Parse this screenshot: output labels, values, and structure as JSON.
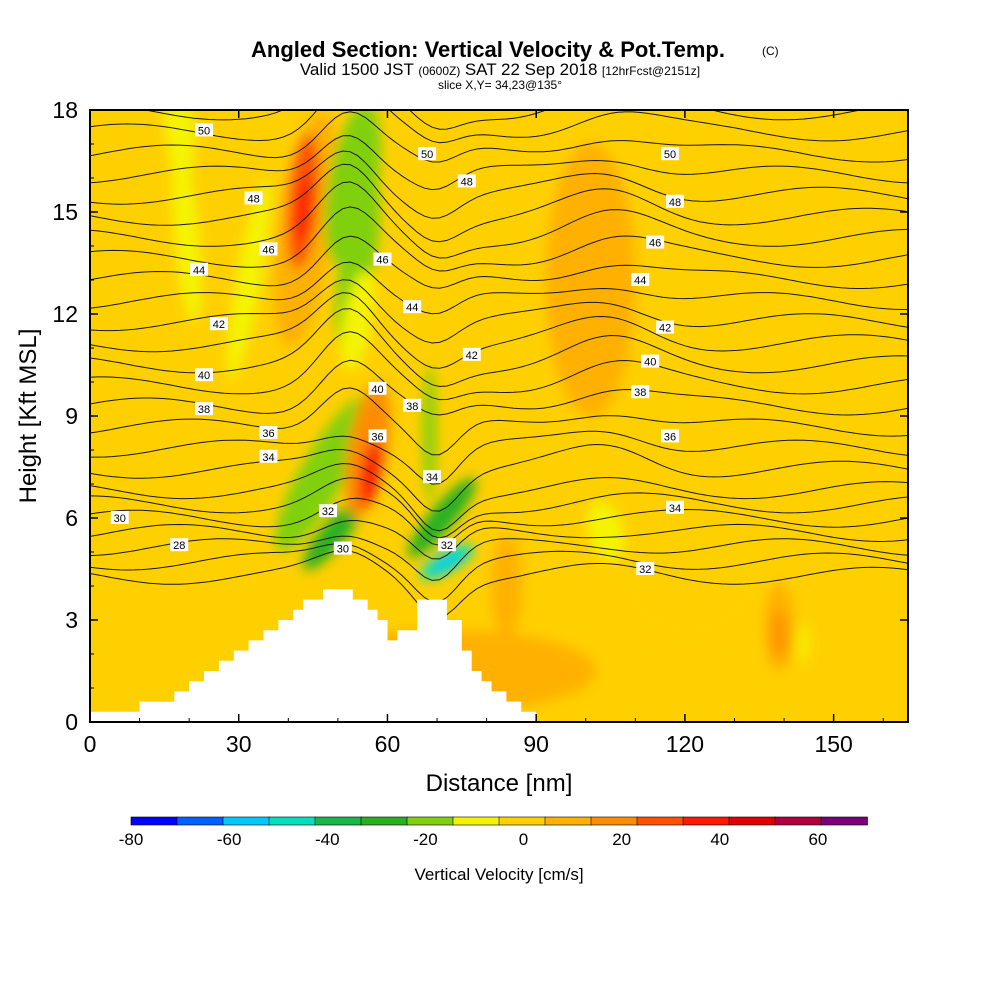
{
  "chart_data": {
    "type": "heatmap",
    "title": "Angled Section: Vertical Velocity & Pot.Temp.",
    "title_unit": "(C)",
    "subtitle_parts": [
      "Valid 1500 JST",
      "(0600Z)",
      "SAT 22 Sep 2018",
      "[12hrFcst@2151z]"
    ],
    "slice_label": "slice X,Y= 34,23@135°",
    "xlabel": "Distance [nm]",
    "ylabel": "Height [Kft MSL]",
    "xlim": [
      0,
      165
    ],
    "ylim": [
      0,
      18
    ],
    "x_ticks": [
      "0",
      "30",
      "60",
      "90",
      "120",
      "150"
    ],
    "y_ticks": [
      "0",
      "3",
      "6",
      "9",
      "12",
      "15",
      "18"
    ],
    "colorbar": {
      "label": "Vertical Velocity [cm/s]",
      "ticks": [
        "-80",
        "-60",
        "-40",
        "-20",
        "0",
        "20",
        "40",
        "60"
      ],
      "bounds": [
        -80,
        70
      ],
      "step": 10,
      "colors": [
        "#0000ff",
        "#0060ff",
        "#00c8ff",
        "#00e0c0",
        "#18b848",
        "#28b020",
        "#80d010",
        "#f4f400",
        "#ffd000",
        "#ffb000",
        "#ff8c00",
        "#ff5000",
        "#ff1800",
        "#e00000",
        "#b00040",
        "#7a007a"
      ]
    },
    "background_color": "#ffd000",
    "terrain": [
      [
        0,
        0.3
      ],
      [
        10,
        0.3
      ],
      [
        10,
        0.6
      ],
      [
        17,
        0.6
      ],
      [
        17,
        0.9
      ],
      [
        20,
        0.9
      ],
      [
        20,
        1.2
      ],
      [
        23,
        1.2
      ],
      [
        23,
        1.5
      ],
      [
        26,
        1.5
      ],
      [
        26,
        1.8
      ],
      [
        29,
        1.8
      ],
      [
        29,
        2.1
      ],
      [
        32,
        2.1
      ],
      [
        32,
        2.4
      ],
      [
        35,
        2.4
      ],
      [
        35,
        2.7
      ],
      [
        38,
        2.7
      ],
      [
        38,
        3.0
      ],
      [
        41,
        3.0
      ],
      [
        41,
        3.3
      ],
      [
        43,
        3.3
      ],
      [
        43,
        3.6
      ],
      [
        47,
        3.6
      ],
      [
        47,
        3.9
      ],
      [
        53,
        3.9
      ],
      [
        53,
        3.6
      ],
      [
        56,
        3.6
      ],
      [
        56,
        3.3
      ],
      [
        58,
        3.3
      ],
      [
        58,
        3.0
      ],
      [
        60,
        3.0
      ],
      [
        60,
        2.4
      ],
      [
        62,
        2.4
      ],
      [
        62,
        2.7
      ],
      [
        66,
        2.7
      ],
      [
        66,
        3.6
      ],
      [
        72,
        3.6
      ],
      [
        72,
        3.0
      ],
      [
        75,
        3.0
      ],
      [
        75,
        2.1
      ],
      [
        77,
        2.1
      ],
      [
        77,
        1.5
      ],
      [
        79,
        1.5
      ],
      [
        79,
        1.2
      ],
      [
        81,
        1.2
      ],
      [
        81,
        0.9
      ],
      [
        84,
        0.9
      ],
      [
        84,
        0.6
      ],
      [
        87,
        0.6
      ],
      [
        87,
        0.3
      ],
      [
        90,
        0.3
      ],
      [
        90,
        0
      ]
    ],
    "velocity_features": [
      {
        "x": 18,
        "y": 17.5,
        "rx": 3,
        "ry": 1.6,
        "rot": -5,
        "v": -10
      },
      {
        "x": 19.5,
        "y": 14.3,
        "rx": 2.5,
        "ry": 2.6,
        "rot": -5,
        "v": -10
      },
      {
        "x": 32,
        "y": 13,
        "rx": 2.5,
        "ry": 3,
        "rot": 10,
        "v": -10
      },
      {
        "x": 43.5,
        "y": 14.5,
        "rx": 5.5,
        "ry": 3.5,
        "rot": 8,
        "v": 10
      },
      {
        "x": 43,
        "y": 15.3,
        "rx": 3,
        "ry": 2,
        "rot": 5,
        "v": 30
      },
      {
        "x": 43,
        "y": 15.1,
        "rx": 1.3,
        "ry": 1,
        "rot": 5,
        "v": 40
      },
      {
        "x": 53,
        "y": 15.8,
        "rx": 5,
        "ry": 2.4,
        "rot": 10,
        "v": -20
      },
      {
        "x": 54,
        "y": 13.5,
        "rx": 3.5,
        "ry": 2.5,
        "rot": 10,
        "v": -20
      },
      {
        "x": 54,
        "y": 11.8,
        "rx": 3,
        "ry": 1.5,
        "rot": 10,
        "v": -10
      },
      {
        "x": 47,
        "y": 7.3,
        "rx": 4.5,
        "ry": 2.6,
        "rot": 30,
        "v": -20
      },
      {
        "x": 49,
        "y": 5.5,
        "rx": 2.5,
        "ry": 1.3,
        "rot": 40,
        "v": -30
      },
      {
        "x": 56,
        "y": 8,
        "rx": 4,
        "ry": 2,
        "rot": 10,
        "v": 20
      },
      {
        "x": 56.5,
        "y": 7.3,
        "rx": 2,
        "ry": 1,
        "rot": 10,
        "v": 40
      },
      {
        "x": 68.5,
        "y": 8.5,
        "rx": 1.3,
        "ry": 2,
        "rot": 0,
        "v": -20
      },
      {
        "x": 71,
        "y": 6,
        "rx": 2.5,
        "ry": 1.5,
        "rot": 40,
        "v": -30
      },
      {
        "x": 72,
        "y": 4.7,
        "rx": 2,
        "ry": 0.9,
        "rot": 60,
        "v": -50
      },
      {
        "x": 72,
        "y": 4.7,
        "rx": 1,
        "ry": 0.5,
        "rot": 60,
        "v": -60
      },
      {
        "x": 84,
        "y": 4,
        "rx": 3,
        "ry": 1.5,
        "rot": 0,
        "v": 10
      },
      {
        "x": 101,
        "y": 13,
        "rx": 9,
        "ry": 4,
        "rot": 0,
        "v": 10
      },
      {
        "x": 104,
        "y": 5.6,
        "rx": 3.5,
        "ry": 0.9,
        "rot": -15,
        "v": -10
      },
      {
        "x": 139,
        "y": 2.8,
        "rx": 3,
        "ry": 1.3,
        "rot": 0,
        "v": 10
      },
      {
        "x": 139,
        "y": 2.6,
        "rx": 1.3,
        "ry": 0.7,
        "rot": 0,
        "v": 20
      },
      {
        "x": 144,
        "y": 2.3,
        "rx": 1,
        "ry": 0.6,
        "rot": 0,
        "v": -10
      },
      {
        "x": 121,
        "y": 4,
        "rx": 14,
        "ry": 1.6,
        "rot": 0,
        "v": 0
      },
      {
        "x": 72,
        "y": 1.5,
        "rx": 30,
        "ry": 1.2,
        "rot": 0,
        "v": 10
      }
    ],
    "theta_contour_labels": [
      {
        "text": "50",
        "x": 23,
        "y": 17.4
      },
      {
        "text": "50",
        "x": 68,
        "y": 16.7
      },
      {
        "text": "50",
        "x": 117,
        "y": 16.7
      },
      {
        "text": "48",
        "x": 33,
        "y": 15.4
      },
      {
        "text": "48",
        "x": 76,
        "y": 15.9
      },
      {
        "text": "48",
        "x": 118,
        "y": 15.3
      },
      {
        "text": "46",
        "x": 36,
        "y": 13.9
      },
      {
        "text": "46",
        "x": 59,
        "y": 13.6
      },
      {
        "text": "46",
        "x": 114,
        "y": 14.1
      },
      {
        "text": "44",
        "x": 22,
        "y": 13.3
      },
      {
        "text": "44",
        "x": 65,
        "y": 12.2
      },
      {
        "text": "44",
        "x": 111,
        "y": 13.0
      },
      {
        "text": "42",
        "x": 26,
        "y": 11.7
      },
      {
        "text": "42",
        "x": 77,
        "y": 10.8
      },
      {
        "text": "42",
        "x": 116,
        "y": 11.6
      },
      {
        "text": "40",
        "x": 23,
        "y": 10.2
      },
      {
        "text": "40",
        "x": 58,
        "y": 9.8
      },
      {
        "text": "40",
        "x": 113,
        "y": 10.6
      },
      {
        "text": "38",
        "x": 23,
        "y": 9.2
      },
      {
        "text": "38",
        "x": 65,
        "y": 9.3
      },
      {
        "text": "38",
        "x": 111,
        "y": 9.7
      },
      {
        "text": "36",
        "x": 36,
        "y": 8.5
      },
      {
        "text": "36",
        "x": 58,
        "y": 8.4
      },
      {
        "text": "36",
        "x": 117,
        "y": 8.4
      },
      {
        "text": "34",
        "x": 36,
        "y": 7.8
      },
      {
        "text": "34",
        "x": 69,
        "y": 7.2
      },
      {
        "text": "34",
        "x": 118,
        "y": 6.3
      },
      {
        "text": "32",
        "x": 48,
        "y": 6.2
      },
      {
        "text": "32",
        "x": 72,
        "y": 5.2
      },
      {
        "text": "32",
        "x": 112,
        "y": 4.5
      },
      {
        "text": "30",
        "x": 51,
        "y": 5.1
      },
      {
        "text": "30",
        "x": 6,
        "y": 6.0
      },
      {
        "text": "28",
        "x": 18,
        "y": 5.2
      }
    ]
  }
}
